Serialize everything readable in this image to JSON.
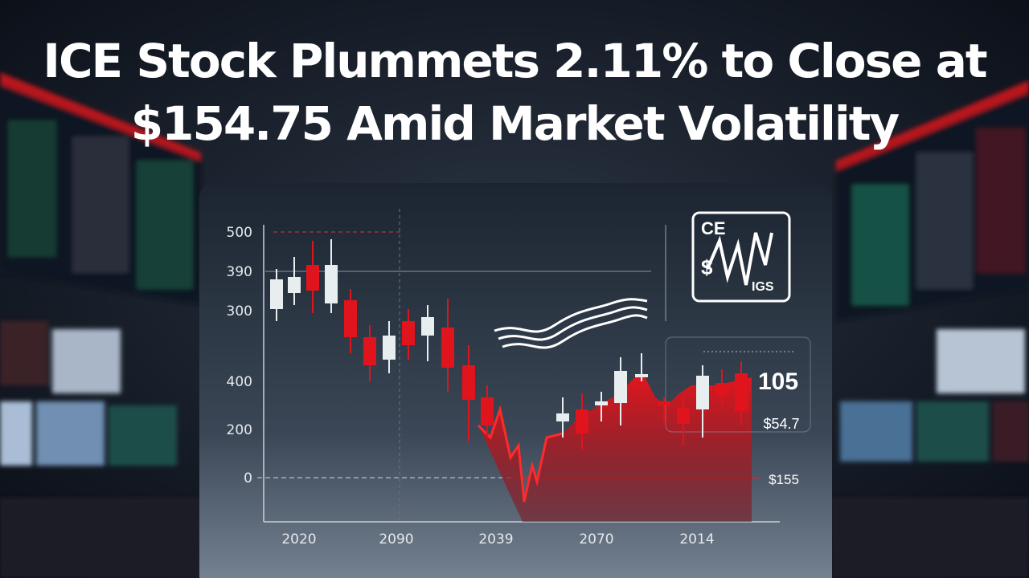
{
  "headline": {
    "lines": [
      "ICE Stock Plummets 2.11% to Close at",
      "$154.75 Amid Market Volatility"
    ]
  },
  "chart_panel": {
    "y_labels": [
      "500",
      "390",
      "300",
      "400",
      "200",
      "0"
    ],
    "x_labels": [
      "2020",
      "2090",
      "2039",
      "2070",
      "2014"
    ],
    "logo": {
      "top": "CE",
      "middle": "$",
      "bottom": "IGS"
    },
    "callouts": [
      "105",
      "$54.7",
      "$155"
    ]
  }
}
